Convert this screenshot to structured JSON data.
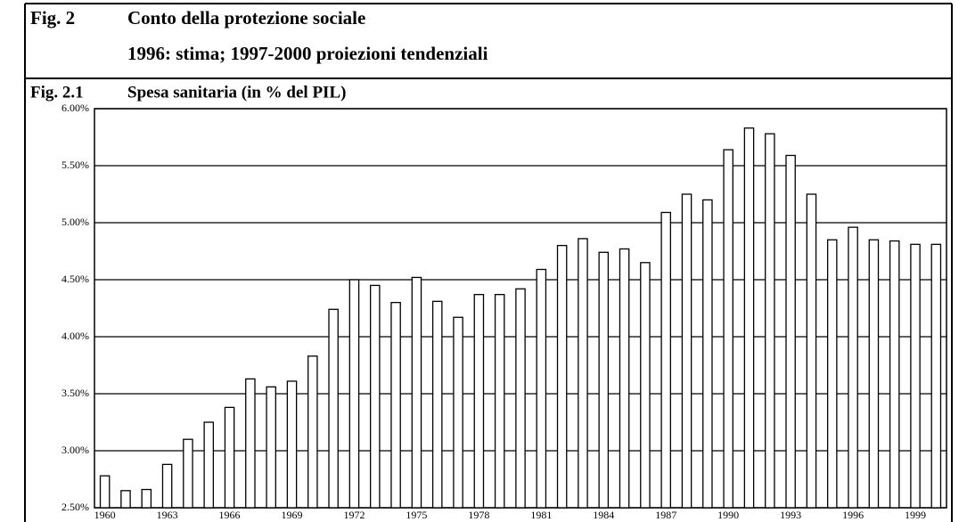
{
  "header": {
    "fig_label": "Fig. 2",
    "title": "Conto della protezione sociale",
    "subtitle": "1996: stima; 1997-2000 proiezioni tendenziali"
  },
  "chart_data": {
    "type": "bar",
    "fig_label": "Fig. 2.1",
    "title": "Spesa sanitaria (in % del PIL)",
    "categories": [
      "1960",
      null,
      null,
      "1963",
      null,
      null,
      "1966",
      null,
      null,
      "1969",
      null,
      null,
      "1972",
      null,
      null,
      "1975",
      null,
      null,
      "1978",
      null,
      null,
      "1981",
      null,
      null,
      "1984",
      null,
      null,
      "1987",
      null,
      null,
      "1990",
      null,
      null,
      "1993",
      null,
      null,
      "1996",
      null,
      null,
      "1999",
      null
    ],
    "values": [
      2.78,
      2.65,
      2.66,
      2.88,
      3.1,
      3.25,
      3.38,
      3.63,
      3.56,
      3.61,
      3.83,
      4.24,
      4.5,
      4.45,
      4.3,
      4.52,
      4.31,
      4.17,
      4.37,
      4.37,
      4.42,
      4.59,
      4.8,
      4.86,
      4.74,
      4.77,
      4.65,
      5.09,
      5.25,
      5.2,
      5.64,
      5.83,
      5.78,
      5.59,
      5.25,
      4.85,
      4.96,
      4.85,
      4.84,
      4.81,
      4.81
    ],
    "color": "#ffffff",
    "ylim": [
      2.5,
      6.0
    ],
    "yticks": [
      {
        "value": 2.5,
        "label": "2.50%"
      },
      {
        "value": 3.0,
        "label": "3.00%"
      },
      {
        "value": 3.5,
        "label": "3.50%"
      },
      {
        "value": 4.0,
        "label": "4.00%"
      },
      {
        "value": 4.5,
        "label": "4.50%"
      },
      {
        "value": 5.0,
        "label": "5.00%"
      },
      {
        "value": 5.5,
        "label": "5.50%"
      },
      {
        "value": 6.0,
        "label": "6.00%"
      }
    ],
    "grid": true
  }
}
